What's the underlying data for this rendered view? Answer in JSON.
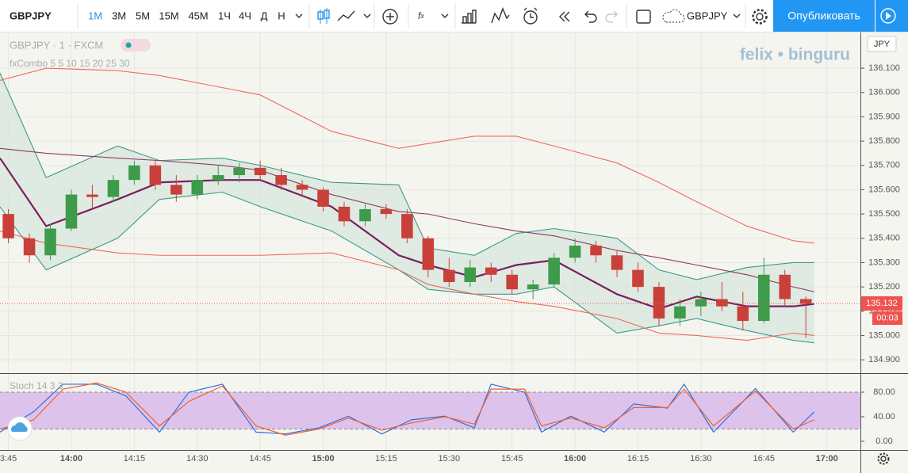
{
  "toolbar": {
    "symbol": "GBPJPY",
    "intervals": [
      "1М",
      "3М",
      "5М",
      "15М",
      "45М",
      "1Ч",
      "4Ч",
      "Д",
      "Н"
    ],
    "compare_symbol": "GBPJPY",
    "publish": "Опубликовать"
  },
  "chart_data": [
    {
      "type": "candlestick",
      "title": "GBPJPY · 1 · FXCM",
      "subtitle": "fxCombo 5 5 10 15 20 25 30",
      "watermark": "felix • binguru",
      "currency": "JPY",
      "xlim": [
        823,
        1028
      ],
      "ylim": [
        134.845,
        136.247
      ],
      "xticks": [
        {
          "value": 825,
          "label": "3:45"
        },
        {
          "value": 840,
          "label": "14:00"
        },
        {
          "value": 855,
          "label": "14:15"
        },
        {
          "value": 870,
          "label": "14:30"
        },
        {
          "value": 885,
          "label": "14:45"
        },
        {
          "value": 900,
          "label": "15:00"
        },
        {
          "value": 915,
          "label": "15:15"
        },
        {
          "value": 930,
          "label": "15:30"
        },
        {
          "value": 945,
          "label": "15:45"
        },
        {
          "value": 960,
          "label": "16:00"
        },
        {
          "value": 975,
          "label": "16:15"
        },
        {
          "value": 990,
          "label": "16:30"
        },
        {
          "value": 1005,
          "label": "16:45"
        },
        {
          "value": 1020,
          "label": "17:00"
        }
      ],
      "yticks": [
        {
          "value": 134.9,
          "label": "134.900"
        },
        {
          "value": 135,
          "label": "135.000"
        },
        {
          "value": 135.1,
          "label": "135.100"
        },
        {
          "value": 135.2,
          "label": "135.200"
        },
        {
          "value": 135.3,
          "label": "135.300"
        },
        {
          "value": 135.4,
          "label": "135.400"
        },
        {
          "value": 135.5,
          "label": "135.500"
        },
        {
          "value": 135.6,
          "label": "135.600"
        },
        {
          "value": 135.7,
          "label": "135.700"
        },
        {
          "value": 135.8,
          "label": "135.800"
        },
        {
          "value": 135.9,
          "label": "135.900"
        },
        {
          "value": 136,
          "label": "136.000"
        },
        {
          "value": 136.1,
          "label": "136.100"
        }
      ],
      "grid": true,
      "up_color": "#3d9b4b",
      "down_color": "#c9403a",
      "candles": [
        [
          825,
          135.5,
          135.52,
          135.38,
          135.4
        ],
        [
          830,
          135.4,
          135.42,
          135.3,
          135.33
        ],
        [
          835,
          135.33,
          135.46,
          135.31,
          135.44
        ],
        [
          840,
          135.44,
          135.6,
          135.43,
          135.58
        ],
        [
          845,
          135.58,
          135.62,
          135.52,
          135.57
        ],
        [
          850,
          135.57,
          135.66,
          135.55,
          135.64
        ],
        [
          855,
          135.64,
          135.72,
          135.62,
          135.7
        ],
        [
          860,
          135.7,
          135.72,
          135.6,
          135.62
        ],
        [
          865,
          135.62,
          135.66,
          135.55,
          135.58
        ],
        [
          870,
          135.58,
          135.66,
          135.56,
          135.64
        ],
        [
          875,
          135.64,
          135.7,
          135.62,
          135.66
        ],
        [
          880,
          135.66,
          135.71,
          135.63,
          135.69
        ],
        [
          885,
          135.69,
          135.72,
          135.64,
          135.66
        ],
        [
          890,
          135.66,
          135.69,
          135.6,
          135.62
        ],
        [
          895,
          135.62,
          135.64,
          135.57,
          135.6
        ],
        [
          900,
          135.6,
          135.61,
          135.51,
          135.53
        ],
        [
          905,
          135.53,
          135.55,
          135.45,
          135.47
        ],
        [
          910,
          135.47,
          135.54,
          135.45,
          135.52
        ],
        [
          915,
          135.52,
          135.54,
          135.48,
          135.5
        ],
        [
          920,
          135.5,
          135.52,
          135.38,
          135.4
        ],
        [
          925,
          135.4,
          135.41,
          135.24,
          135.27
        ],
        [
          930,
          135.27,
          135.32,
          135.2,
          135.22
        ],
        [
          935,
          135.22,
          135.31,
          135.2,
          135.28
        ],
        [
          940,
          135.28,
          135.3,
          135.22,
          135.25
        ],
        [
          945,
          135.25,
          135.27,
          135.17,
          135.19
        ],
        [
          950,
          135.19,
          135.23,
          135.15,
          135.21
        ],
        [
          955,
          135.21,
          135.34,
          135.2,
          135.32
        ],
        [
          960,
          135.32,
          135.4,
          135.3,
          135.37
        ],
        [
          965,
          135.37,
          135.39,
          135.3,
          135.33
        ],
        [
          970,
          135.33,
          135.35,
          135.24,
          135.27
        ],
        [
          975,
          135.27,
          135.3,
          135.18,
          135.2
        ],
        [
          980,
          135.2,
          135.22,
          135.04,
          135.07
        ],
        [
          985,
          135.07,
          135.15,
          135.04,
          135.12
        ],
        [
          990,
          135.12,
          135.18,
          135.08,
          135.15
        ],
        [
          995,
          135.15,
          135.22,
          135.1,
          135.12
        ],
        [
          1000,
          135.12,
          135.18,
          135.02,
          135.06
        ],
        [
          1005,
          135.06,
          135.32,
          135.05,
          135.25
        ],
        [
          1010,
          135.25,
          135.27,
          135.12,
          135.15
        ],
        [
          1015,
          135.15,
          135.16,
          134.99,
          135.13
        ]
      ],
      "line_x": [
        823,
        834,
        851,
        861,
        876,
        885,
        902,
        918,
        925,
        936,
        946,
        955,
        970,
        980,
        989,
        1001,
        1012,
        1017
      ],
      "fill_between": [
        0,
        1
      ],
      "fill_color": "#d5e6dc",
      "lines": [
        {
          "color": "#3a9a8a",
          "values": [
            136.08,
            135.65,
            135.78,
            135.72,
            135.73,
            135.7,
            135.63,
            135.62,
            135.36,
            135.33,
            135.42,
            135.44,
            135.4,
            135.27,
            135.23,
            135.28,
            135.3,
            135.3
          ]
        },
        {
          "color": "#3a9a8a",
          "values": [
            135.53,
            135.27,
            135.4,
            135.56,
            135.59,
            135.53,
            135.43,
            135.27,
            135.19,
            135.17,
            135.17,
            135.2,
            135.01,
            135.04,
            135.07,
            135.02,
            134.98,
            134.97
          ]
        },
        {
          "color": "#7a1f5c",
          "values": [
            135.73,
            135.45,
            135.56,
            135.63,
            135.64,
            135.64,
            135.53,
            135.33,
            135.29,
            135.24,
            135.29,
            135.31,
            135.17,
            135.11,
            135.16,
            135.12,
            135.12,
            135.13
          ]
        },
        {
          "color": "#8c3a63",
          "values": [
            135.77,
            135.75,
            135.73,
            135.72,
            135.7,
            135.68,
            135.58,
            135.51,
            135.5,
            135.46,
            135.43,
            135.41,
            135.35,
            135.32,
            135.29,
            135.25,
            135.2,
            135.18
          ]
        },
        {
          "color": "#ef6a5a",
          "values": [
            136.05,
            136.1,
            136.09,
            136.07,
            136.02,
            135.99,
            135.84,
            135.77,
            135.79,
            135.82,
            135.82,
            135.78,
            135.71,
            135.63,
            135.55,
            135.45,
            135.39,
            135.38
          ]
        },
        {
          "color": "#ef6a5a",
          "values": [
            135.43,
            135.38,
            135.34,
            135.33,
            135.33,
            135.33,
            135.34,
            135.27,
            135.21,
            135.17,
            135.14,
            135.12,
            135.07,
            135.01,
            135.0,
            134.98,
            135.01,
            135.0
          ]
        }
      ],
      "last_price": 135.132,
      "last_price_color": "#ef5350",
      "countdown": "00:03"
    },
    {
      "type": "line",
      "title": "Stoch 14 3 3",
      "xlim": [
        823,
        1028
      ],
      "ylim": [
        -14.2,
        109.7
      ],
      "yticks": [
        {
          "value": 0,
          "label": "0.00"
        },
        {
          "value": 40,
          "label": "40.00"
        },
        {
          "value": 80,
          "label": "80.00"
        }
      ],
      "band": [
        20,
        80
      ],
      "band_color": "#ddc3ec",
      "x": [
        823,
        831,
        838,
        846,
        853,
        861,
        868,
        876,
        884,
        891,
        899,
        906,
        914,
        921,
        929,
        936,
        940,
        948,
        952,
        959,
        967,
        974,
        982,
        986,
        993,
        1003,
        1012,
        1017
      ],
      "series": [
        {
          "color": "#2f6fe0",
          "values": [
            15,
            48,
            93,
            93,
            74,
            15,
            80,
            93,
            15,
            12,
            22,
            41,
            12,
            35,
            41,
            22,
            93,
            80,
            15,
            41,
            15,
            61,
            54,
            93,
            15,
            86,
            15,
            48
          ]
        },
        {
          "color": "#f0602a",
          "values": [
            20,
            35,
            85,
            95,
            80,
            25,
            65,
            90,
            25,
            10,
            20,
            38,
            18,
            30,
            40,
            28,
            85,
            85,
            25,
            38,
            22,
            55,
            55,
            85,
            25,
            82,
            20,
            35
          ]
        }
      ]
    }
  ]
}
